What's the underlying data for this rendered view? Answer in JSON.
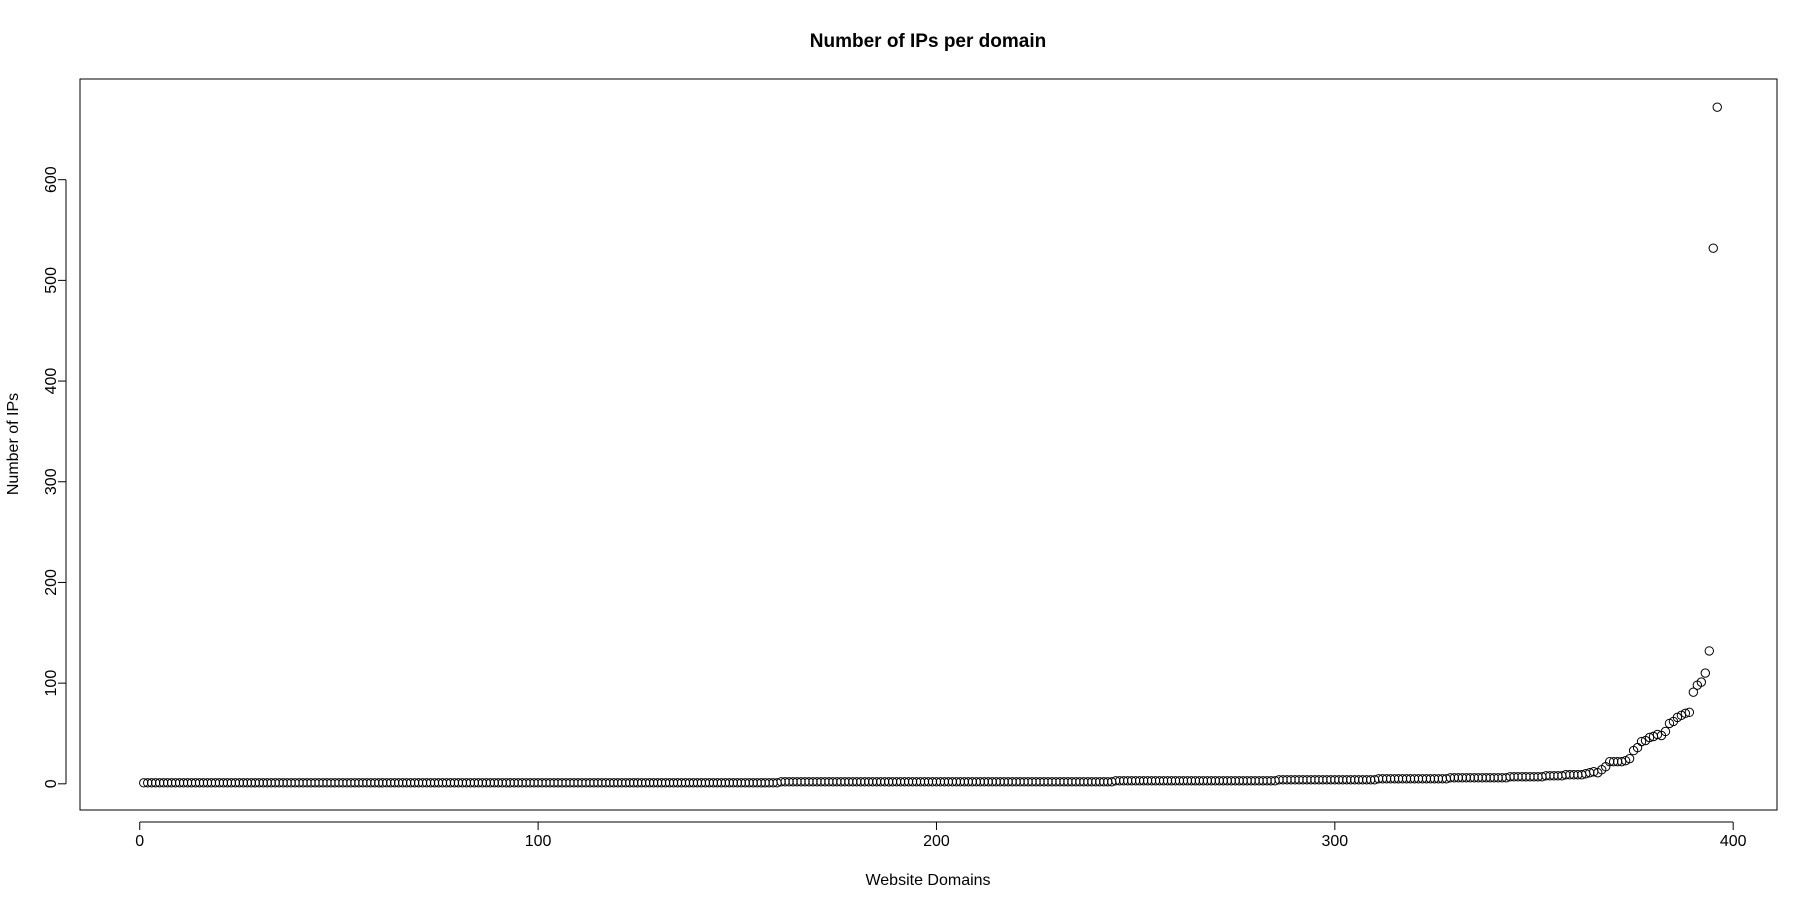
{
  "chart_data": {
    "type": "scatter",
    "title": "Number of IPs per domain",
    "xlabel": "Website Domains",
    "ylabel": "Number of IPs",
    "xlim": [
      -15,
      411
    ],
    "ylim": [
      -26,
      700
    ],
    "xticks": [
      0,
      100,
      200,
      300,
      400
    ],
    "yticks": [
      0,
      100,
      200,
      300,
      400,
      500,
      600
    ],
    "grid": false,
    "marker": "open-circle",
    "color": "#000000",
    "segments": [
      {
        "from": 1,
        "to": 160,
        "value": 1
      },
      {
        "from": 161,
        "to": 244,
        "value": 2
      },
      {
        "from": 245,
        "to": 285,
        "value": 3
      },
      {
        "from": 286,
        "to": 310,
        "value": 4
      },
      {
        "from": 311,
        "to": 328,
        "value": 5
      },
      {
        "from": 329,
        "to": 343,
        "value": 6
      },
      {
        "from": 344,
        "to": 352,
        "value": 7
      },
      {
        "from": 353,
        "to": 357,
        "value": 8
      },
      {
        "from": 358,
        "to": 362,
        "value": 9
      }
    ],
    "points": [
      {
        "x": 363,
        "y": 10
      },
      {
        "x": 364,
        "y": 11
      },
      {
        "x": 365,
        "y": 12
      },
      {
        "x": 366,
        "y": 11
      },
      {
        "x": 367,
        "y": 14
      },
      {
        "x": 368,
        "y": 17
      },
      {
        "x": 369,
        "y": 22
      },
      {
        "x": 370,
        "y": 22
      },
      {
        "x": 371,
        "y": 22
      },
      {
        "x": 372,
        "y": 22
      },
      {
        "x": 373,
        "y": 23
      },
      {
        "x": 374,
        "y": 25
      },
      {
        "x": 375,
        "y": 33
      },
      {
        "x": 376,
        "y": 36
      },
      {
        "x": 377,
        "y": 42
      },
      {
        "x": 378,
        "y": 43
      },
      {
        "x": 379,
        "y": 46
      },
      {
        "x": 380,
        "y": 47
      },
      {
        "x": 381,
        "y": 49
      },
      {
        "x": 382,
        "y": 48
      },
      {
        "x": 383,
        "y": 52
      },
      {
        "x": 384,
        "y": 60
      },
      {
        "x": 385,
        "y": 62
      },
      {
        "x": 386,
        "y": 66
      },
      {
        "x": 387,
        "y": 68
      },
      {
        "x": 388,
        "y": 70
      },
      {
        "x": 389,
        "y": 71
      },
      {
        "x": 390,
        "y": 91
      },
      {
        "x": 391,
        "y": 98
      },
      {
        "x": 392,
        "y": 101
      },
      {
        "x": 393,
        "y": 110
      },
      {
        "x": 394,
        "y": 132
      },
      {
        "x": 395,
        "y": 532
      },
      {
        "x": 396,
        "y": 672
      }
    ]
  }
}
